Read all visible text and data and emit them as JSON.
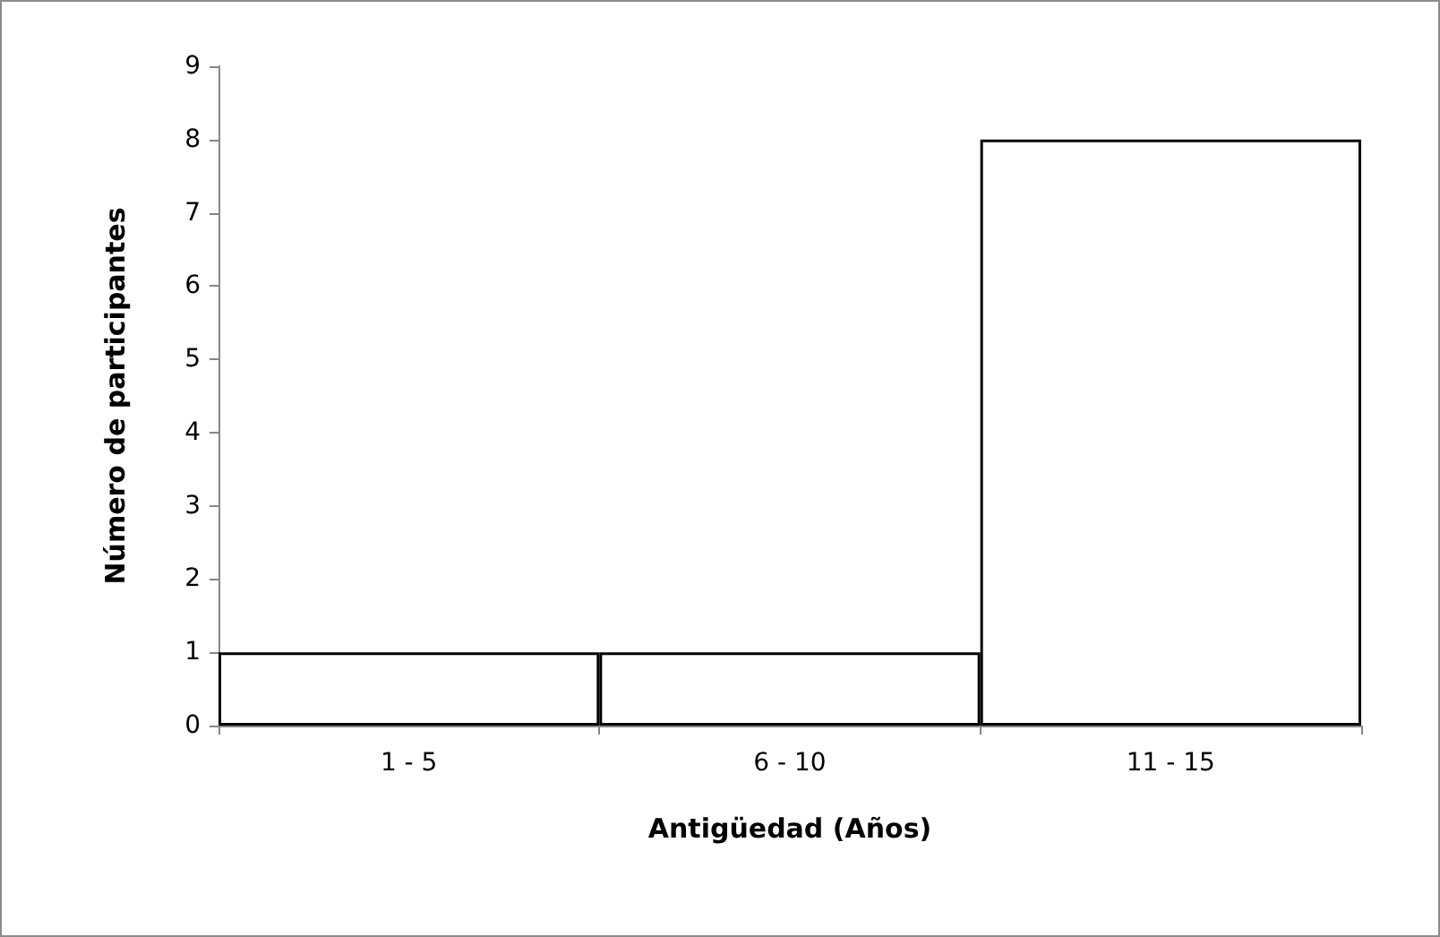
{
  "chart_data": {
    "type": "bar",
    "xlabel": "Antigüedad (Años)",
    "ylabel": "Número de participantes",
    "categories": [
      "1 - 5",
      "6 - 10",
      "11 - 15"
    ],
    "values": [
      1,
      1,
      8
    ],
    "color": "#ffffff",
    "ylim": [
      0,
      9
    ],
    "yticks": [
      0,
      1,
      2,
      3,
      4,
      5,
      6,
      7,
      8,
      9
    ],
    "grid": false
  }
}
